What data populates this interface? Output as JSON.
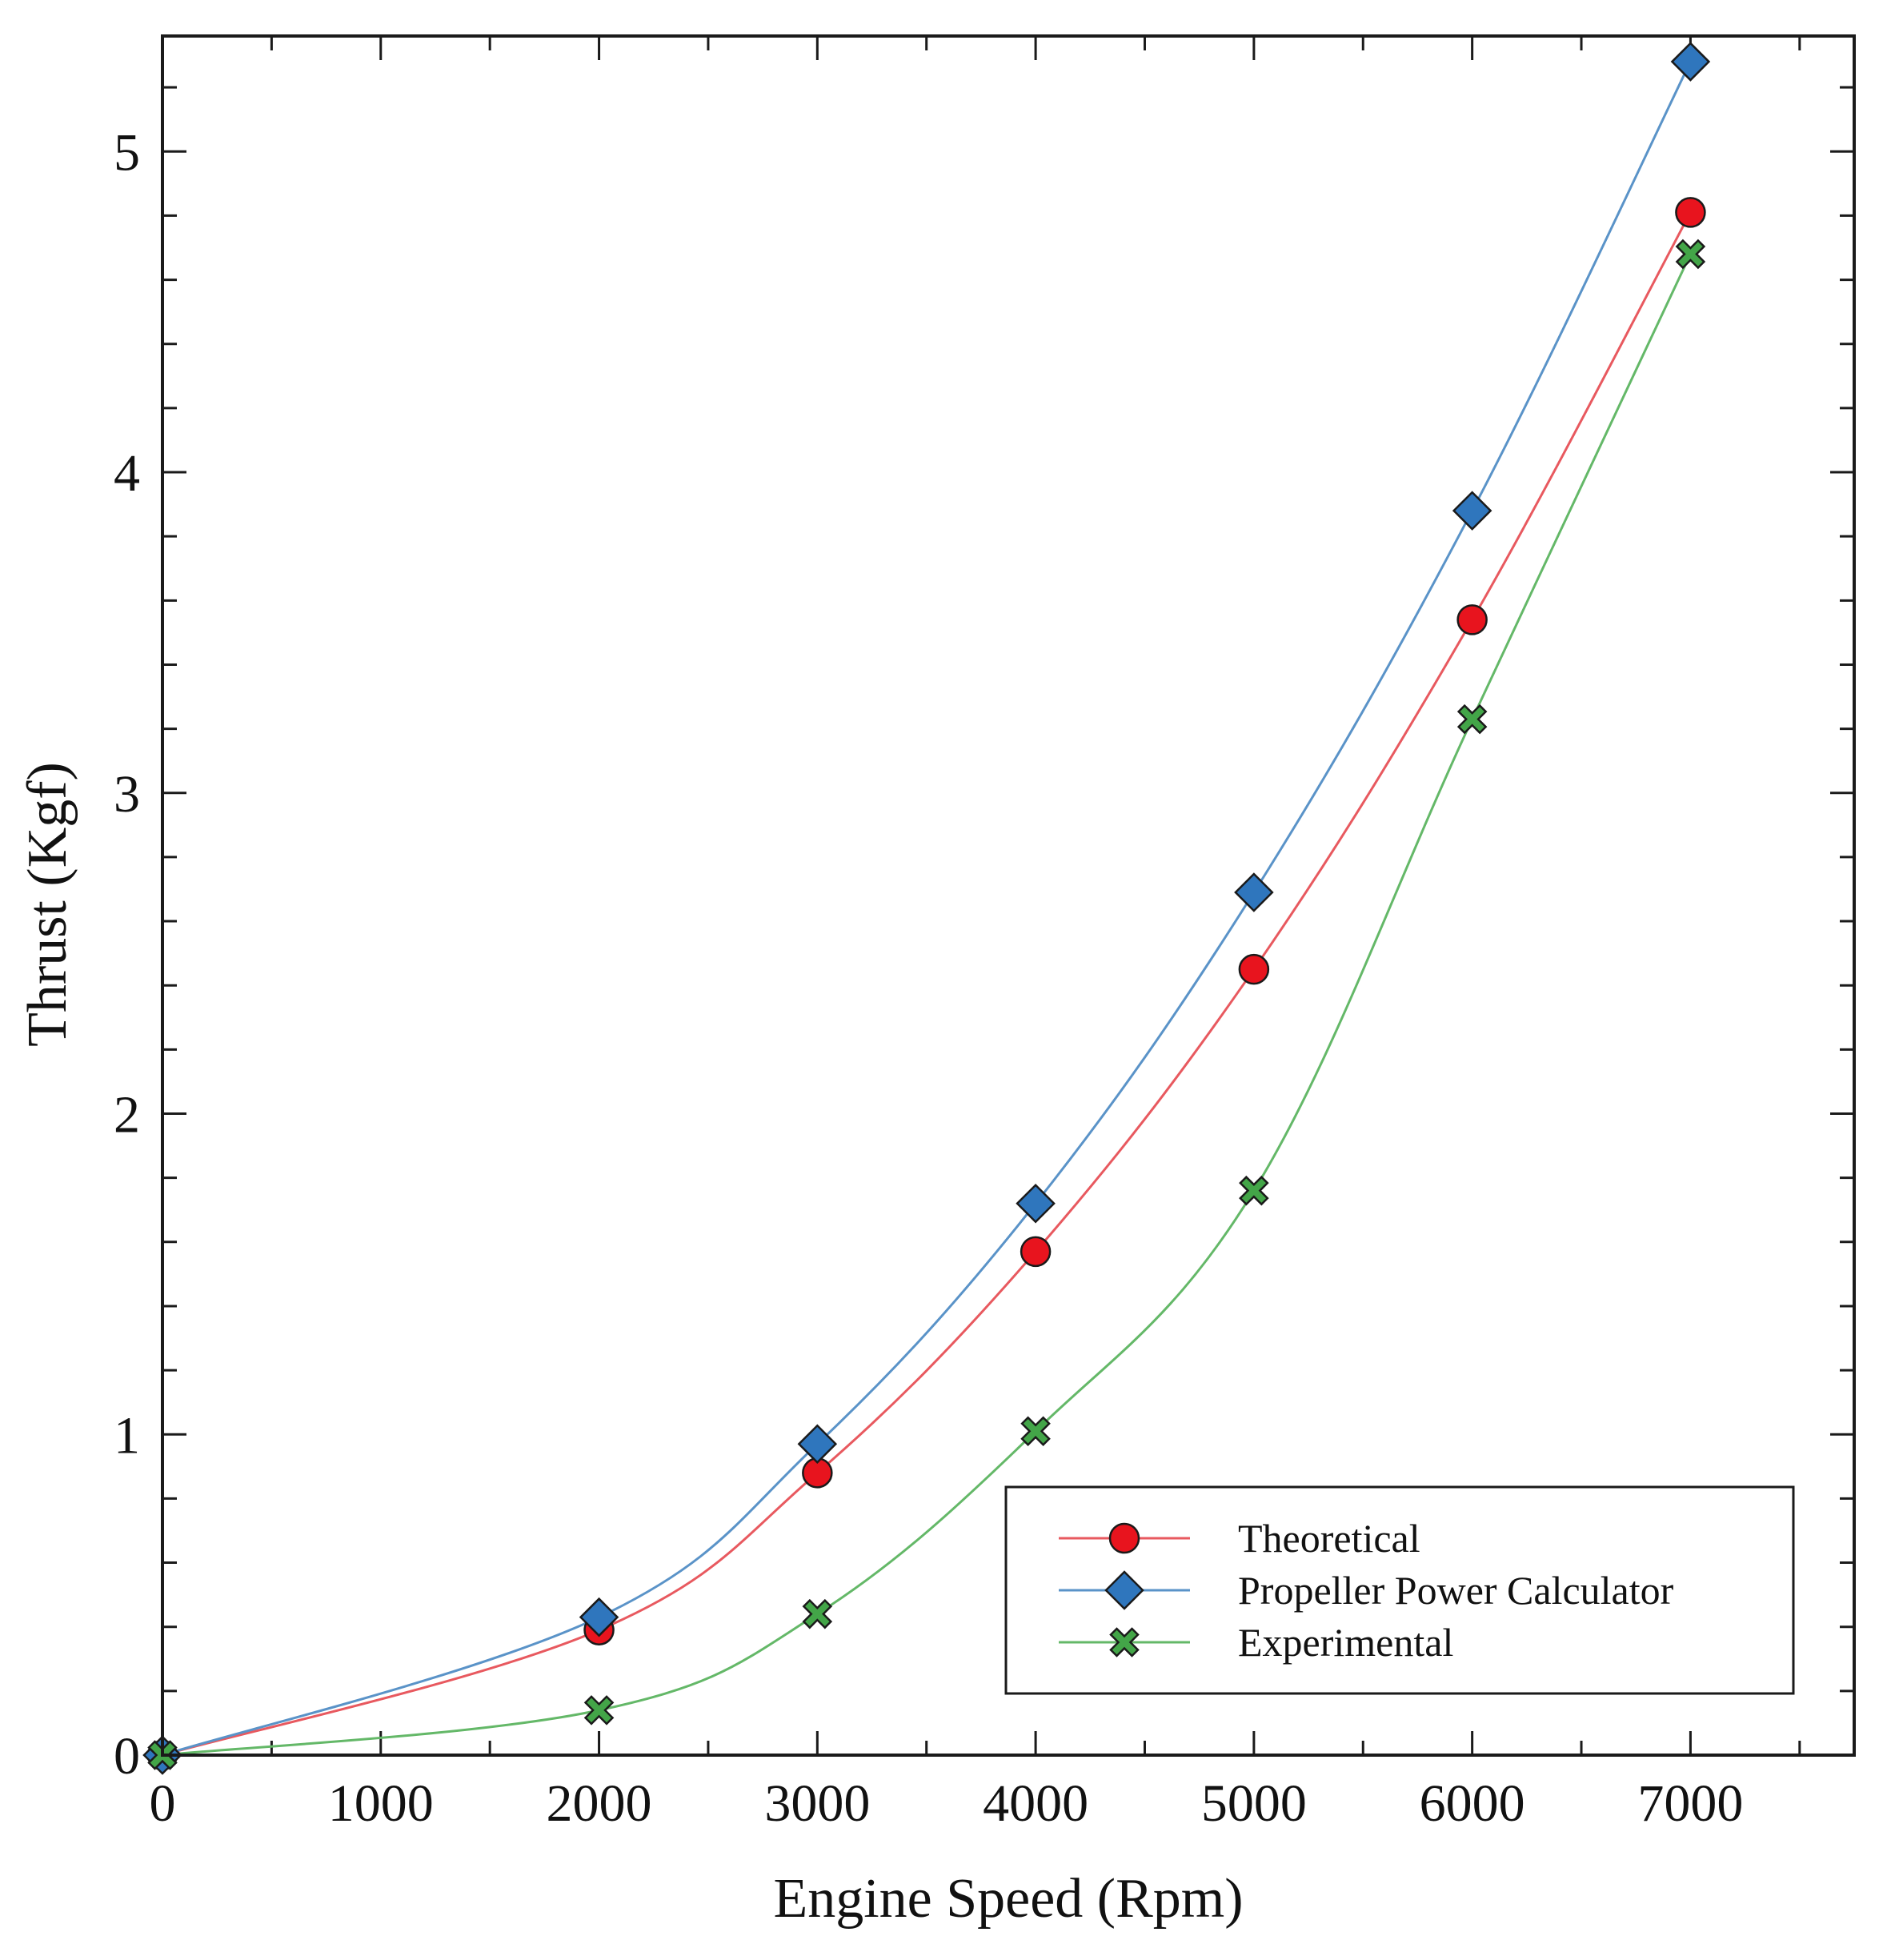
{
  "chart_data": {
    "type": "line",
    "title": "",
    "xlabel": "Engine Speed (Rpm)",
    "ylabel": "Thrust (Kgf)",
    "xlim": [
      0,
      7750
    ],
    "ylim": [
      0,
      5.36
    ],
    "xticks": [
      0,
      1000,
      2000,
      3000,
      4000,
      5000,
      6000,
      7000
    ],
    "xtick_labels": [
      "0",
      "1000",
      "2000",
      "3000",
      "4000",
      "5000",
      "6000",
      "7000"
    ],
    "yticks": [
      0,
      1,
      2,
      3,
      4,
      5
    ],
    "ytick_labels": [
      "0",
      "1",
      "2",
      "3",
      "4",
      "5"
    ],
    "x_minor_step": 500,
    "y_minor_step": 0.2,
    "grid": false,
    "legend_position": "lower-right",
    "x": [
      0,
      2000,
      3000,
      4000,
      5000,
      6000,
      7000
    ],
    "series": [
      {
        "name": "Theoretical",
        "marker": "circle",
        "color": "#e8141e",
        "line_color": "#e8595f",
        "values": [
          0,
          0.39,
          0.88,
          1.57,
          2.45,
          3.54,
          4.81
        ]
      },
      {
        "name": "Propeller Power Calculator",
        "marker": "diamond",
        "color": "#2f76bd",
        "line_color": "#5a93c8",
        "values": [
          0,
          0.43,
          0.97,
          1.72,
          2.69,
          3.88,
          5.28
        ]
      },
      {
        "name": "Experimental",
        "marker": "x",
        "color": "#43a548",
        "line_color": "#64b868",
        "values": [
          0,
          0.14,
          0.44,
          1.01,
          1.76,
          3.23,
          4.68
        ]
      }
    ]
  }
}
